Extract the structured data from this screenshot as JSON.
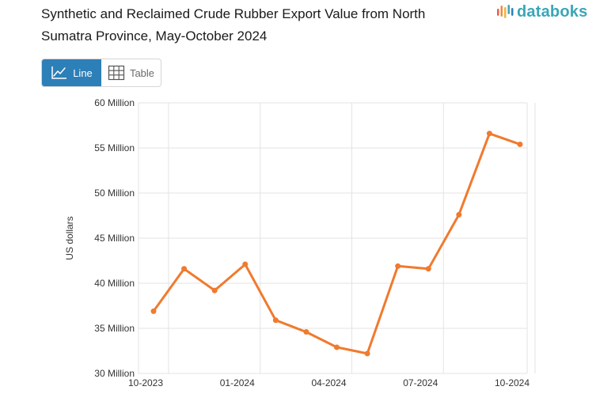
{
  "title": "Synthetic and Reclaimed Crude Rubber Export Value from North Sumatra Province, May-October 2024",
  "brand": {
    "name": "databoks",
    "icon": "databoks-logo-icon",
    "color": "#3aa6b9"
  },
  "view_toggle": {
    "line_label": "Line",
    "table_label": "Table",
    "active": "Line",
    "line_icon": "line-chart-icon",
    "table_icon": "table-grid-icon",
    "active_color": "#2d7fb8"
  },
  "chart_data": {
    "type": "line",
    "title": "Synthetic and Reclaimed Crude Rubber Export Value from North Sumatra Province, May-October 2024",
    "xlabel": "",
    "ylabel": "US dollars",
    "x": [
      "10-2023",
      "11-2023",
      "12-2023",
      "01-2024",
      "02-2024",
      "03-2024",
      "04-2024",
      "05-2024",
      "06-2024",
      "07-2024",
      "08-2024",
      "09-2024",
      "10-2024"
    ],
    "x_tick_labels": [
      "10-2023",
      "01-2024",
      "04-2024",
      "07-2024",
      "10-2024"
    ],
    "series": [
      {
        "name": "",
        "color": "#f07a2e",
        "values": [
          36.9,
          41.6,
          39.2,
          42.1,
          35.9,
          34.6,
          32.9,
          32.2,
          41.9,
          41.6,
          47.6,
          56.6,
          55.4
        ]
      }
    ],
    "y_unit": "Million",
    "ylim": [
      30,
      60
    ],
    "y_ticks": [
      30,
      35,
      40,
      45,
      50,
      55,
      60
    ],
    "y_tick_labels": [
      "30 Million",
      "35 Million",
      "40 Million",
      "45 Million",
      "50 Million",
      "55 Million",
      "60 Million"
    ],
    "grid": true,
    "legend": "none"
  }
}
